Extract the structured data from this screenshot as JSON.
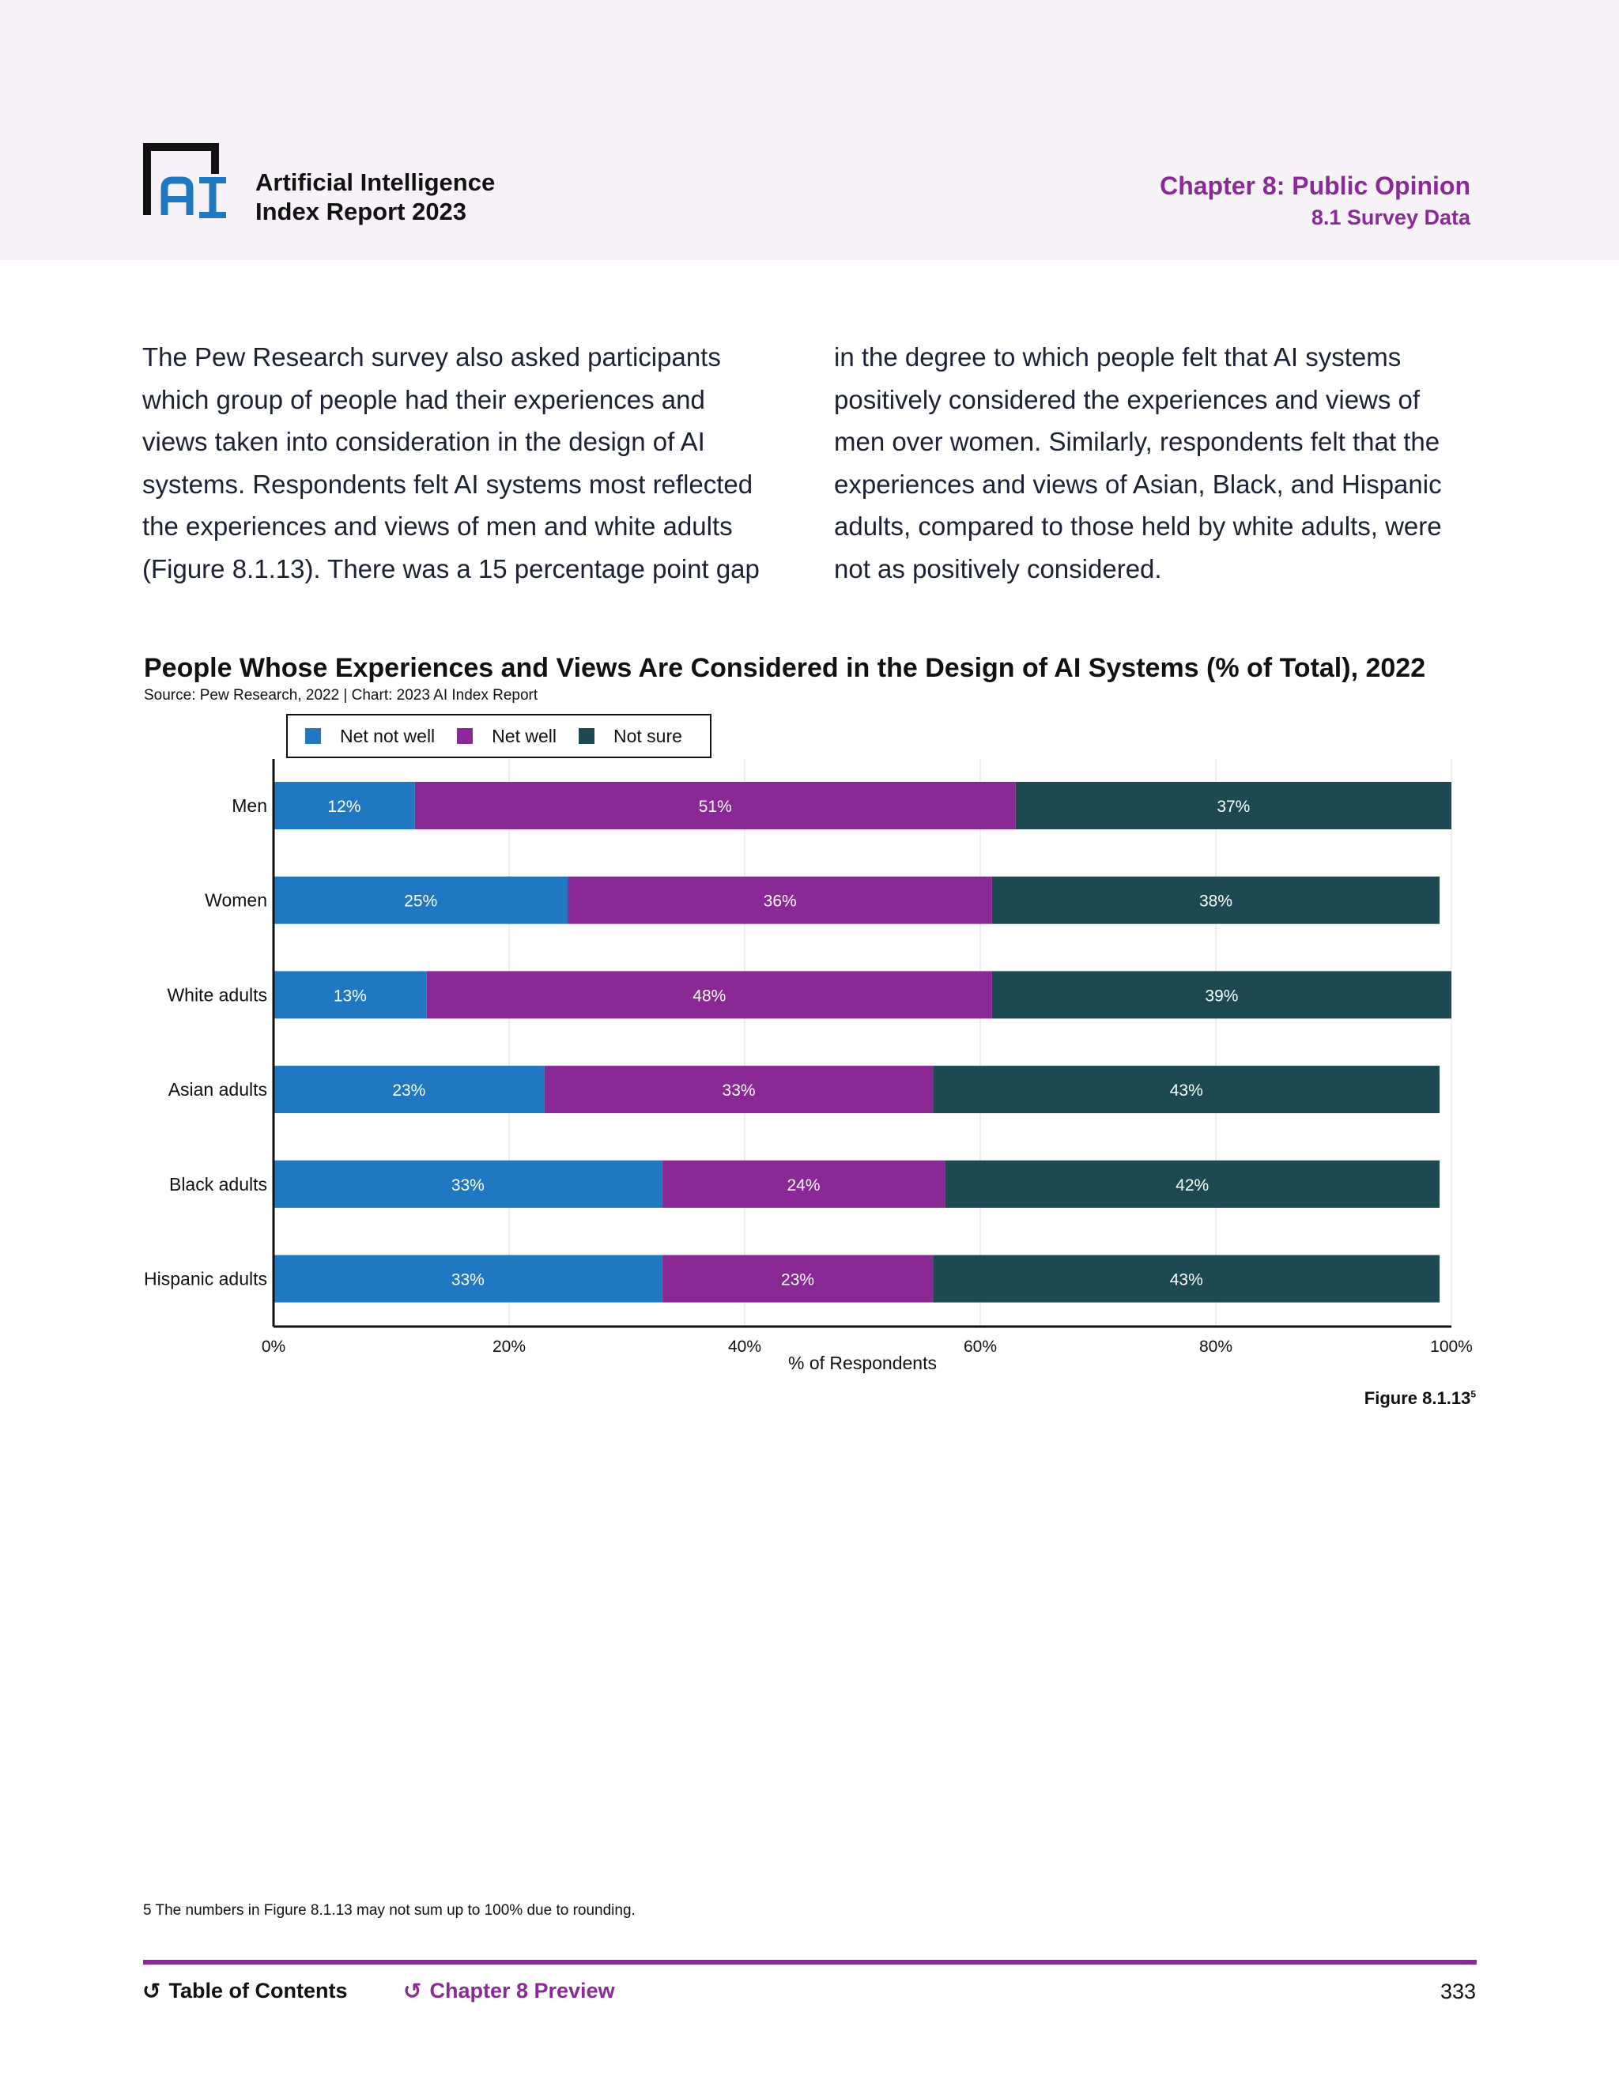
{
  "header": {
    "report_title_line1": "Artificial Intelligence",
    "report_title_line2": "Index Report 2023",
    "chapter_title": "Chapter 8: Public Opinion",
    "chapter_subtitle": "8.1 Survey Data"
  },
  "body": {
    "left_column": "The Pew Research survey also asked participants which group of people had their experiences and views taken into consideration in the design of AI systems. Respondents felt AI systems most reflected the experiences and views of men and white adults (Figure 8.1.13). There was a 15 percentage point gap",
    "right_column": "in the degree to which people felt that AI systems positively considered the experiences and views of men over women. Similarly, respondents felt that the experiences and views of Asian, Black, and Hispanic adults, compared to those held by white adults, were not as positively considered."
  },
  "chart_data": {
    "type": "bar",
    "orientation": "horizontal",
    "stacked": true,
    "title": "People Whose Experiences and Views Are Considered in the Design of AI Systems (% of Total), 2022",
    "source": "Source: Pew Research, 2022 | Chart: 2023 AI Index Report",
    "xlabel": "% of Respondents",
    "ylabel": "",
    "xlim": [
      0,
      100
    ],
    "x_ticks": [
      "0%",
      "20%",
      "40%",
      "60%",
      "80%",
      "100%"
    ],
    "categories": [
      "Men",
      "Women",
      "White adults",
      "Asian adults",
      "Black adults",
      "Hispanic adults"
    ],
    "series": [
      {
        "name": "Net not well",
        "color": "#1f78c1",
        "values": [
          12,
          25,
          13,
          23,
          33,
          33
        ]
      },
      {
        "name": "Net well",
        "color": "#8a2896",
        "values": [
          51,
          36,
          48,
          33,
          24,
          23
        ]
      },
      {
        "name": "Not sure",
        "color": "#1c4a50",
        "values": [
          37,
          38,
          39,
          43,
          42,
          43
        ]
      }
    ],
    "grid": true,
    "legend": "top-left"
  },
  "figure": {
    "label": "Figure 8.1.13",
    "footnote_ref": "5"
  },
  "footnote": "5 The numbers in Figure 8.1.13 may not sum up to 100% due to rounding.",
  "footer": {
    "toc_label": "Table of Contents",
    "chapter_label": "Chapter 8 Preview",
    "page_number": "333"
  },
  "icons": {
    "logo": "ai-index-logo-icon",
    "back_arrow": "back-arrow-icon"
  }
}
